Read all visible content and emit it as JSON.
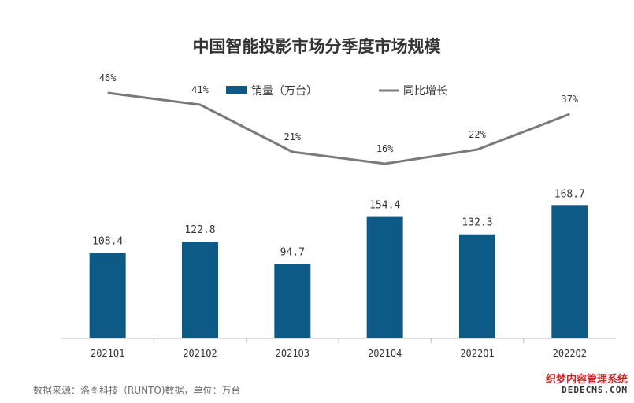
{
  "chart_data": {
    "type": "bar",
    "title": "中国智能投影市场分季度市场规模",
    "categories": [
      "2021Q1",
      "2021Q2",
      "2021Q3",
      "2021Q4",
      "2022Q1",
      "2022Q2"
    ],
    "series": [
      {
        "name": "销量（万台）",
        "type": "bar",
        "values": [
          108.4,
          122.8,
          94.7,
          154.4,
          132.3,
          168.7
        ],
        "labels": [
          "108.4",
          "122.8",
          "94.7",
          "154.4",
          "132.3",
          "168.7"
        ],
        "color": "#0d5a86"
      },
      {
        "name": "同比增长",
        "type": "line",
        "values": [
          46,
          41,
          21,
          16,
          22,
          37
        ],
        "labels": [
          "46%",
          "41%",
          "21%",
          "16%",
          "22%",
          "37%"
        ],
        "color": "#7a7a7a"
      }
    ],
    "legend_position": "top-center",
    "grid": false
  },
  "source_note": "数据来源：洛图科技（RUNTO)数据，单位：万台",
  "watermark": {
    "line1": "织梦内容管理系统",
    "line2": "DEDECMS.COM"
  }
}
